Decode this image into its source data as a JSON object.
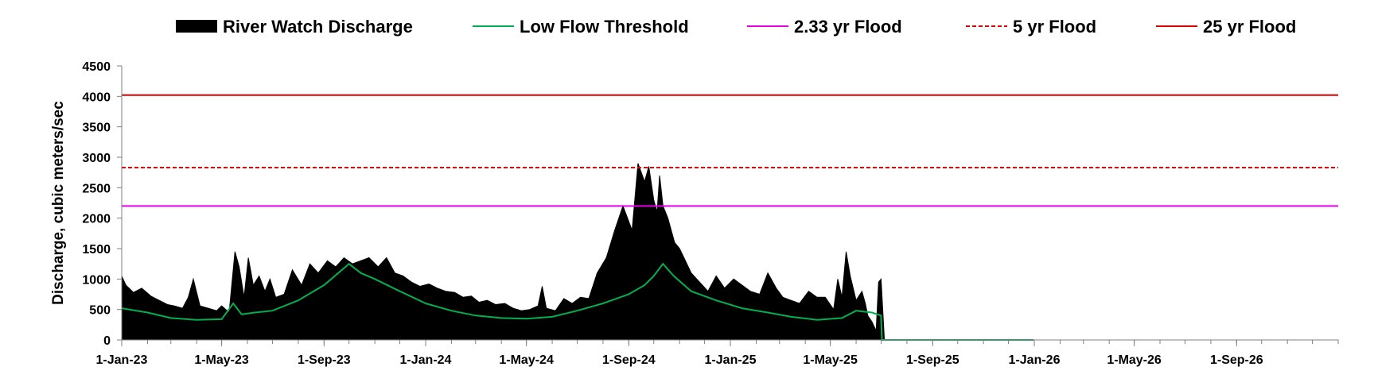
{
  "chart_data": {
    "type": "area",
    "title": "",
    "xlabel": "",
    "ylabel": "Discharge, cubic meters/sec",
    "ylim": [
      0,
      4500
    ],
    "yticks": [
      0,
      500,
      1000,
      1500,
      2000,
      2500,
      3000,
      3500,
      4000,
      4500
    ],
    "xlim": [
      "2023-01-01",
      "2027-01-01"
    ],
    "xticks": [
      {
        "date": "2023-01-01",
        "label": "1-Jan-23"
      },
      {
        "date": "2023-05-01",
        "label": "1-May-23"
      },
      {
        "date": "2023-09-01",
        "label": "1-Sep-23"
      },
      {
        "date": "2024-01-01",
        "label": "1-Jan-24"
      },
      {
        "date": "2024-05-01",
        "label": "1-May-24"
      },
      {
        "date": "2024-09-01",
        "label": "1-Sep-24"
      },
      {
        "date": "2025-01-01",
        "label": "1-Jan-25"
      },
      {
        "date": "2025-05-01",
        "label": "1-May-25"
      },
      {
        "date": "2025-09-01",
        "label": "1-Sep-25"
      },
      {
        "date": "2026-01-01",
        "label": "1-Jan-26"
      },
      {
        "date": "2026-05-01",
        "label": "1-May-26"
      },
      {
        "date": "2026-09-01",
        "label": "1-Sep-26"
      }
    ],
    "grid": false,
    "legend_position": "top",
    "legend": [
      {
        "label": "River Watch Discharge",
        "style": "area",
        "color": "#000000"
      },
      {
        "label": "Low Flow Threshold",
        "style": "solid",
        "color": "#00b050"
      },
      {
        "label": "2.33 yr Flood",
        "style": "solid",
        "color": "#e600e6"
      },
      {
        "label": "5 yr Flood",
        "style": "dashed",
        "color": "#e00000"
      },
      {
        "label": "25 yr Flood",
        "style": "solid",
        "color": "#e00000"
      }
    ],
    "thresholds": [
      {
        "name": "2.33 yr Flood",
        "value": 2200,
        "color": "#e600e6",
        "dashed": false
      },
      {
        "name": "5 yr Flood",
        "value": 2830,
        "color": "#e00000",
        "dashed": true
      },
      {
        "name": "25 yr Flood",
        "value": 4020,
        "color": "#e00000",
        "dashed": false
      }
    ],
    "series": [
      {
        "name": "River Watch Discharge",
        "type": "area",
        "color": "#000000",
        "x": [
          "2023-01-01",
          "2023-01-06",
          "2023-01-15",
          "2023-01-25",
          "2023-02-05",
          "2023-02-15",
          "2023-02-25",
          "2023-03-05",
          "2023-03-15",
          "2023-03-22",
          "2023-03-28",
          "2023-04-05",
          "2023-04-15",
          "2023-04-25",
          "2023-05-01",
          "2023-05-10",
          "2023-05-17",
          "2023-05-22",
          "2023-05-28",
          "2023-06-02",
          "2023-06-08",
          "2023-06-15",
          "2023-06-22",
          "2023-06-28",
          "2023-07-05",
          "2023-07-15",
          "2023-07-25",
          "2023-08-05",
          "2023-08-15",
          "2023-08-25",
          "2023-09-05",
          "2023-09-15",
          "2023-09-25",
          "2023-10-05",
          "2023-10-15",
          "2023-10-25",
          "2023-11-05",
          "2023-11-15",
          "2023-11-25",
          "2023-12-05",
          "2023-12-15",
          "2023-12-25",
          "2024-01-05",
          "2024-01-15",
          "2024-01-25",
          "2024-02-05",
          "2024-02-15",
          "2024-02-25",
          "2024-03-05",
          "2024-03-15",
          "2024-03-25",
          "2024-04-05",
          "2024-04-15",
          "2024-04-25",
          "2024-05-05",
          "2024-05-15",
          "2024-05-20",
          "2024-05-25",
          "2024-06-05",
          "2024-06-15",
          "2024-06-25",
          "2024-07-05",
          "2024-07-15",
          "2024-07-25",
          "2024-08-05",
          "2024-08-15",
          "2024-08-25",
          "2024-09-05",
          "2024-09-12",
          "2024-09-20",
          "2024-09-25",
          "2024-10-01",
          "2024-10-05",
          "2024-10-08",
          "2024-10-12",
          "2024-10-18",
          "2024-10-22",
          "2024-10-26",
          "2024-11-01",
          "2024-11-08",
          "2024-11-15",
          "2024-11-25",
          "2024-12-05",
          "2024-12-15",
          "2024-12-25",
          "2025-01-05",
          "2025-01-15",
          "2025-01-25",
          "2025-02-05",
          "2025-02-15",
          "2025-02-25",
          "2025-03-05",
          "2025-03-15",
          "2025-03-25",
          "2025-04-05",
          "2025-04-15",
          "2025-04-25",
          "2025-05-05",
          "2025-05-10",
          "2025-05-15",
          "2025-05-20",
          "2025-05-25",
          "2025-06-01",
          "2025-06-08",
          "2025-06-12",
          "2025-06-15",
          "2025-06-20",
          "2025-06-25",
          "2025-06-28",
          "2025-07-01",
          "2025-07-05"
        ],
        "values": [
          1050,
          900,
          780,
          850,
          720,
          650,
          580,
          560,
          520,
          700,
          1000,
          560,
          520,
          480,
          560,
          450,
          1450,
          1200,
          700,
          1350,
          900,
          1050,
          800,
          1000,
          700,
          750,
          1150,
          900,
          1250,
          1100,
          1300,
          1200,
          1350,
          1250,
          1300,
          1350,
          1200,
          1350,
          1100,
          1050,
          950,
          880,
          920,
          850,
          800,
          780,
          700,
          720,
          620,
          650,
          580,
          600,
          520,
          480,
          500,
          560,
          880,
          520,
          480,
          680,
          600,
          700,
          680,
          1100,
          1350,
          1800,
          2200,
          1800,
          2900,
          2600,
          2850,
          2300,
          2100,
          2700,
          2200,
          2000,
          1800,
          1600,
          1500,
          1300,
          1100,
          950,
          800,
          1050,
          850,
          1000,
          900,
          800,
          750,
          1100,
          850,
          700,
          650,
          600,
          800,
          700,
          700,
          500,
          1000,
          700,
          1450,
          1050,
          650,
          800,
          600,
          400,
          300,
          150,
          950,
          1000,
          0
        ]
      },
      {
        "name": "Low Flow Threshold",
        "type": "line",
        "color": "#00b050",
        "x": [
          "2023-01-01",
          "2023-02-01",
          "2023-03-01",
          "2023-04-01",
          "2023-05-01",
          "2023-05-15",
          "2023-05-25",
          "2023-06-10",
          "2023-07-01",
          "2023-08-01",
          "2023-09-01",
          "2023-10-01",
          "2023-10-15",
          "2023-11-01",
          "2023-12-01",
          "2024-01-01",
          "2024-02-01",
          "2024-03-01",
          "2024-04-01",
          "2024-05-01",
          "2024-06-01",
          "2024-07-01",
          "2024-08-01",
          "2024-09-01",
          "2024-09-20",
          "2024-10-01",
          "2024-10-12",
          "2024-10-25",
          "2024-11-15",
          "2024-12-15",
          "2025-01-15",
          "2025-02-15",
          "2025-03-15",
          "2025-04-15",
          "2025-05-15",
          "2025-06-01",
          "2025-06-20",
          "2025-07-01",
          "2025-07-02",
          "2025-12-31"
        ],
        "values": [
          520,
          450,
          360,
          330,
          340,
          600,
          420,
          450,
          480,
          650,
          900,
          1250,
          1100,
          1000,
          800,
          600,
          480,
          400,
          360,
          350,
          380,
          480,
          600,
          750,
          900,
          1050,
          1250,
          1050,
          800,
          650,
          520,
          450,
          380,
          330,
          360,
          480,
          450,
          400,
          0,
          0
        ]
      }
    ]
  }
}
